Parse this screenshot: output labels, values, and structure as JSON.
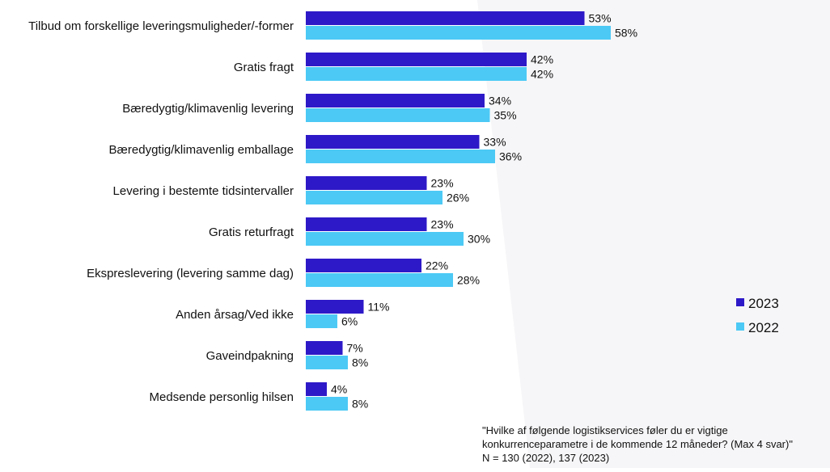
{
  "chart_data": {
    "type": "bar",
    "orientation": "horizontal",
    "categories": [
      "Tilbud om forskellige leveringsmuligheder/-former",
      "Gratis fragt",
      "Bæredygtig/klimavenlig levering",
      "Bæredygtig/klimavenlig emballage",
      "Levering i bestemte tidsintervaller",
      "Gratis returfragt",
      "Ekspreslevering (levering samme dag)",
      "Anden årsag/Ved ikke",
      "Gaveindpakning",
      "Medsende personlig hilsen"
    ],
    "series": [
      {
        "name": "2023",
        "color": "#2e19c8",
        "values": [
          53,
          42,
          34,
          33,
          23,
          23,
          22,
          11,
          7,
          4
        ]
      },
      {
        "name": "2022",
        "color": "#4cc9f5",
        "values": [
          58,
          42,
          35,
          36,
          26,
          30,
          28,
          6,
          8,
          8
        ]
      }
    ],
    "value_suffix": "%",
    "xlim": [
      0,
      100
    ],
    "grid": false,
    "legend_position": "right",
    "footnote_lines": [
      "\"Hvilke af følgende logistikservices føler du er vigtige",
      "konkurrenceparametre i de kommende 12 måneder? (Max 4 svar)\"",
      "N = 130 (2022), 137 (2023)"
    ]
  }
}
